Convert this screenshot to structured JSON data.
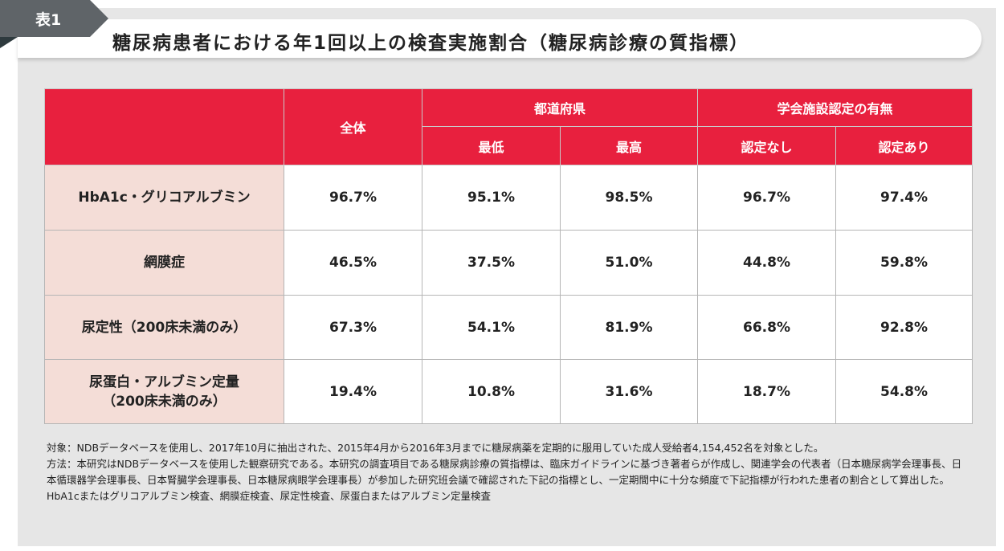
{
  "tab_label": "表1",
  "title": "糖尿病患者における年1回以上の検査実施割合（糖尿病診療の質指標）",
  "colors": {
    "header": "#e8203e",
    "row_label_bg": "#f4ddd7",
    "tab": "#5f6468",
    "panel": "#e6e6e6"
  },
  "table": {
    "header": {
      "overall": "全体",
      "prefecture_group": "都道府県",
      "prefecture_min": "最低",
      "prefecture_max": "最高",
      "certified_group": "学会施設認定の有無",
      "not_certified": "認定なし",
      "certified": "認定あり"
    },
    "rows": [
      {
        "label": "HbA1c・グリコアルブミン",
        "label2": "",
        "values": [
          "96.7%",
          "95.1%",
          "98.5%",
          "96.7%",
          "97.4%"
        ]
      },
      {
        "label": "網膜症",
        "label2": "",
        "values": [
          "46.5%",
          "37.5%",
          "51.0%",
          "44.8%",
          "59.8%"
        ]
      },
      {
        "label": "尿定性（200床未満のみ）",
        "label2": "",
        "values": [
          "67.3%",
          "54.1%",
          "81.9%",
          "66.8%",
          "92.8%"
        ]
      },
      {
        "label": "尿蛋白・アルブミン定量",
        "label2": "（200床未満のみ）",
        "values": [
          "19.4%",
          "10.8%",
          "31.6%",
          "18.7%",
          "54.8%"
        ]
      }
    ]
  },
  "notes": [
    "対象：NDBデータベースを使用し、2017年10月に抽出された、2015年4月から2016年3月までに糖尿病薬を定期的に服用していた成人受給者4,154,452名を対象とした。",
    "方法：本研究はNDBデータベースを使用した観察研究である。本研究の調査項目である糖尿病診療の質指標は、臨床ガイドラインに基づき著者らが作成し、関連学会の代表者（日本糖尿病学会理事長、日本循環器学会理事長、日本腎臓学会理事長、日本糖尿病眼学会理事長）が参加した研究班会議で確認された下記の指標とし、一定期間中に十分な頻度で下記指標が行われた患者の割合として算出した。",
    "HbA1cまたはグリコアルブミン検査、網膜症検査、尿定性検査、尿蛋白またはアルブミン定量検査"
  ]
}
